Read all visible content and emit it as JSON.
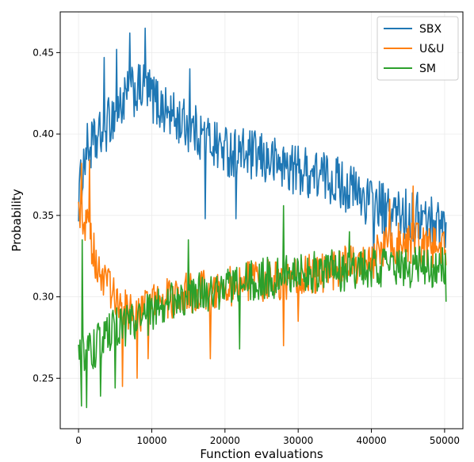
{
  "chart_data": {
    "type": "line",
    "title": "",
    "xlabel": "Function evaluations",
    "ylabel": "Probability",
    "xlim": [
      -2500,
      52500
    ],
    "ylim": [
      0.219,
      0.475
    ],
    "xticks": [
      0,
      10000,
      20000,
      30000,
      40000,
      50000
    ],
    "xtick_labels": [
      "0",
      "10000",
      "20000",
      "30000",
      "40000",
      "50000"
    ],
    "yticks": [
      0.25,
      0.3,
      0.35,
      0.4,
      0.45
    ],
    "ytick_labels": [
      "0.25",
      "0.30",
      "0.35",
      "0.40",
      "0.45"
    ],
    "grid": true,
    "legend_position": "top-right",
    "sample_step": 100,
    "series": [
      {
        "name": "SBX",
        "color": "#1f77b4",
        "noise": 0.016,
        "spikes": [
          [
            7000,
            0.462
          ],
          [
            9100,
            0.465
          ],
          [
            3500,
            0.447
          ],
          [
            5200,
            0.452
          ],
          [
            15200,
            0.44
          ],
          [
            500,
            0.365
          ],
          [
            17300,
            0.348
          ],
          [
            21500,
            0.348
          ],
          [
            40300,
            0.318
          ],
          [
            41800,
            0.33
          ]
        ],
        "anchors": [
          [
            0,
            0.36
          ],
          [
            1000,
            0.39
          ],
          [
            2500,
            0.395
          ],
          [
            4500,
            0.41
          ],
          [
            7000,
            0.425
          ],
          [
            9000,
            0.428
          ],
          [
            11000,
            0.418
          ],
          [
            13000,
            0.41
          ],
          [
            15000,
            0.405
          ],
          [
            20000,
            0.39
          ],
          [
            25000,
            0.385
          ],
          [
            30000,
            0.378
          ],
          [
            35000,
            0.372
          ],
          [
            40000,
            0.358
          ],
          [
            42500,
            0.352
          ],
          [
            45000,
            0.35
          ],
          [
            50000,
            0.345
          ]
        ]
      },
      {
        "name": "U&U",
        "color": "#ff7f0e",
        "noise": 0.013,
        "spikes": [
          [
            400,
            0.382
          ],
          [
            1500,
            0.384
          ],
          [
            8000,
            0.25
          ],
          [
            6000,
            0.245
          ],
          [
            18000,
            0.262
          ],
          [
            28000,
            0.27
          ],
          [
            42500,
            0.36
          ],
          [
            45700,
            0.368
          ],
          [
            9500,
            0.262
          ],
          [
            30000,
            0.285
          ]
        ],
        "anchors": [
          [
            0,
            0.355
          ],
          [
            1000,
            0.345
          ],
          [
            2500,
            0.32
          ],
          [
            4000,
            0.305
          ],
          [
            6000,
            0.292
          ],
          [
            8000,
            0.29
          ],
          [
            10000,
            0.295
          ],
          [
            13000,
            0.3
          ],
          [
            16000,
            0.303
          ],
          [
            20000,
            0.306
          ],
          [
            25000,
            0.31
          ],
          [
            30000,
            0.312
          ],
          [
            35000,
            0.317
          ],
          [
            40000,
            0.322
          ],
          [
            42500,
            0.332
          ],
          [
            45000,
            0.334
          ],
          [
            50000,
            0.328
          ]
        ]
      },
      {
        "name": "SM",
        "color": "#2ca02c",
        "noise": 0.013,
        "spikes": [
          [
            400,
            0.233
          ],
          [
            1100,
            0.232
          ],
          [
            3000,
            0.239
          ],
          [
            5000,
            0.244
          ],
          [
            28000,
            0.356
          ],
          [
            15000,
            0.335
          ],
          [
            37000,
            0.34
          ],
          [
            500,
            0.335
          ],
          [
            22000,
            0.268
          ],
          [
            50200,
            0.297
          ]
        ],
        "anchors": [
          [
            0,
            0.265
          ],
          [
            2000,
            0.268
          ],
          [
            5000,
            0.28
          ],
          [
            8000,
            0.285
          ],
          [
            10000,
            0.29
          ],
          [
            13000,
            0.298
          ],
          [
            16000,
            0.302
          ],
          [
            20000,
            0.306
          ],
          [
            25000,
            0.311
          ],
          [
            30000,
            0.314
          ],
          [
            35000,
            0.316
          ],
          [
            40000,
            0.318
          ],
          [
            45000,
            0.318
          ],
          [
            50000,
            0.318
          ]
        ]
      }
    ]
  }
}
